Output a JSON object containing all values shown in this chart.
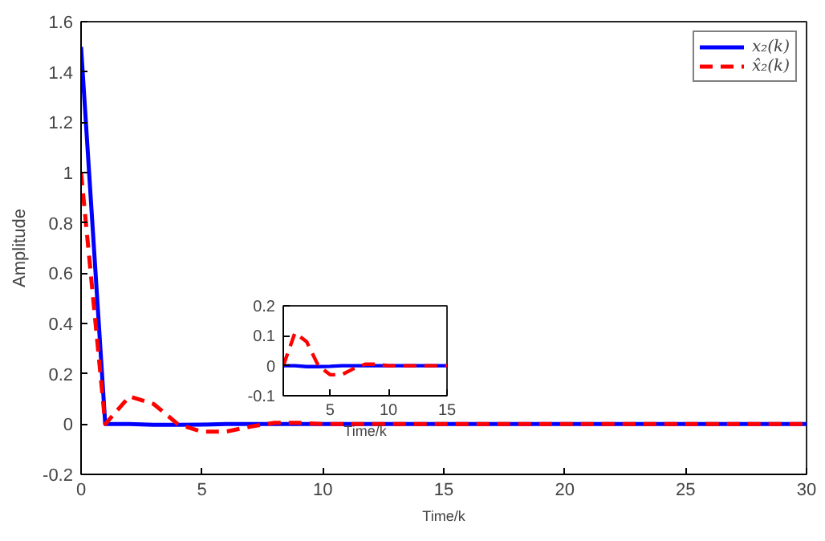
{
  "chart_data": [
    {
      "type": "line",
      "xlabel": "Time/k",
      "ylabel": "Amplitude",
      "x": [
        0,
        1,
        2,
        3,
        4,
        5,
        6,
        7,
        8,
        9,
        10,
        11,
        12,
        13,
        14,
        15,
        16,
        17,
        18,
        19,
        20,
        21,
        22,
        23,
        24,
        25,
        26,
        27,
        28,
        29,
        30
      ],
      "series": [
        {
          "name": "x₂(k)",
          "color": "#0000ff",
          "line_style": "solid",
          "values": [
            1.5,
            0,
            0,
            -0.003,
            -0.003,
            -0.002,
            0,
            0,
            0,
            0,
            0,
            0,
            0,
            0,
            0,
            0,
            0,
            0,
            0,
            0,
            0,
            0,
            0,
            0,
            0,
            0,
            0,
            0,
            0,
            0,
            0
          ]
        },
        {
          "name": "x̂₂(k)",
          "color": "#ff0000",
          "line_style": "dashed",
          "values": [
            1.0,
            0,
            0.11,
            0.08,
            0,
            -0.03,
            -0.03,
            -0.01,
            0.005,
            0.005,
            0,
            0,
            0,
            0,
            0,
            0,
            0,
            0,
            0,
            0,
            0,
            0,
            0,
            0,
            0,
            0,
            0,
            0,
            0,
            0,
            0
          ]
        }
      ],
      "xlim": [
        0,
        30
      ],
      "ylim": [
        -0.2,
        1.6
      ],
      "xticks": [
        0,
        5,
        10,
        15,
        20,
        25,
        30
      ],
      "yticks": [
        -0.2,
        0,
        {
          "value": 0.2,
          "label": "0.2"
        },
        {
          "value": 0.4,
          "label": "0.4"
        },
        {
          "value": 0.6,
          "label": "0.6"
        },
        {
          "value": 0.8,
          "label": "0.8"
        },
        1,
        {
          "value": 1.2,
          "label": "1.2"
        },
        {
          "value": 1.4,
          "label": "1.4"
        },
        {
          "value": 1.6,
          "label": "1.6"
        }
      ],
      "grid": false,
      "legend": "top right"
    },
    {
      "type": "line",
      "xlabel": "Time/k",
      "x": [
        1,
        2,
        3,
        4,
        5,
        6,
        7,
        8,
        9,
        10,
        11,
        12,
        13,
        14,
        15
      ],
      "series": [
        {
          "color": "#0000ff",
          "line_style": "solid",
          "values": [
            0,
            0,
            -0.003,
            -0.003,
            -0.002,
            0,
            0,
            0,
            0,
            0,
            0,
            0,
            0,
            0,
            0
          ]
        },
        {
          "color": "#ff0000",
          "line_style": "dashed",
          "values": [
            0,
            0.11,
            0.08,
            0,
            -0.03,
            -0.03,
            -0.01,
            0.005,
            0.005,
            0,
            0,
            0,
            0,
            0,
            0
          ]
        }
      ],
      "xlim": [
        1,
        15
      ],
      "ylim": [
        -0.1,
        0.2
      ],
      "xticks": [
        5,
        10,
        15
      ],
      "yticks": [
        {
          "value": -0.1,
          "label": "-0.1"
        },
        0,
        {
          "value": 0.1,
          "label": "0.1"
        },
        {
          "value": 0.2,
          "label": "0.2"
        }
      ],
      "grid": false
    }
  ]
}
